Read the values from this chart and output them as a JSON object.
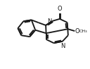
{
  "bg": "#ffffff",
  "lc": "#1a1a1a",
  "lw": 1.35,
  "fs": 6.0,
  "xlim": [
    0.0,
    1.0
  ],
  "ylim": [
    0.0,
    1.0
  ]
}
